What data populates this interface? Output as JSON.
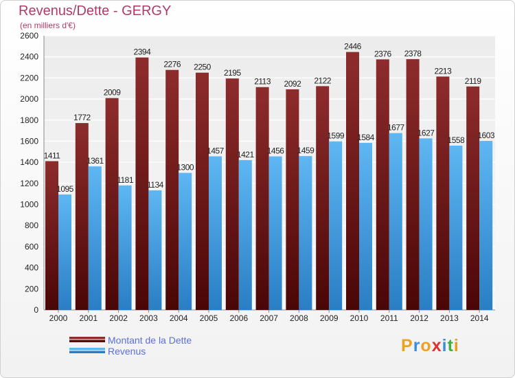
{
  "title": "Revenus/Dette - GERGY",
  "subtitle": "(en milliers d'€)",
  "chart_data": {
    "type": "bar",
    "categories": [
      "2000",
      "2001",
      "2002",
      "2003",
      "2004",
      "2005",
      "2006",
      "2007",
      "2008",
      "2009",
      "2010",
      "2011",
      "2012",
      "2013",
      "2014"
    ],
    "series": [
      {
        "name": "Montant de la Dette",
        "color": "#7a1818",
        "values": [
          1411,
          1772,
          2009,
          2394,
          2276,
          2250,
          2195,
          2113,
          2092,
          2122,
          2446,
          2376,
          2378,
          2213,
          2119
        ]
      },
      {
        "name": "Revenus",
        "color": "#4aa3e8",
        "values": [
          1095,
          1361,
          1181,
          1134,
          1300,
          1457,
          1421,
          1456,
          1459,
          1599,
          1584,
          1677,
          1627,
          1558,
          1603
        ]
      }
    ],
    "ylim": [
      0,
      2600
    ],
    "yticks": [
      0,
      200,
      400,
      600,
      800,
      1000,
      1200,
      1400,
      1600,
      1800,
      2000,
      2200,
      2400,
      2600
    ],
    "grid": true,
    "legend": "bottom-left"
  },
  "legend": {
    "debt_label": "Montant de la Dette",
    "revenue_label": "Revenus"
  },
  "logo": {
    "letters": [
      "P",
      "r",
      "o",
      "x",
      "i",
      "t",
      "i"
    ],
    "colors": [
      "#f0a020",
      "#3a8ee0",
      "#f0a020",
      "#e03030",
      "#3a8ee0",
      "#40b040",
      "#e0a020"
    ]
  }
}
